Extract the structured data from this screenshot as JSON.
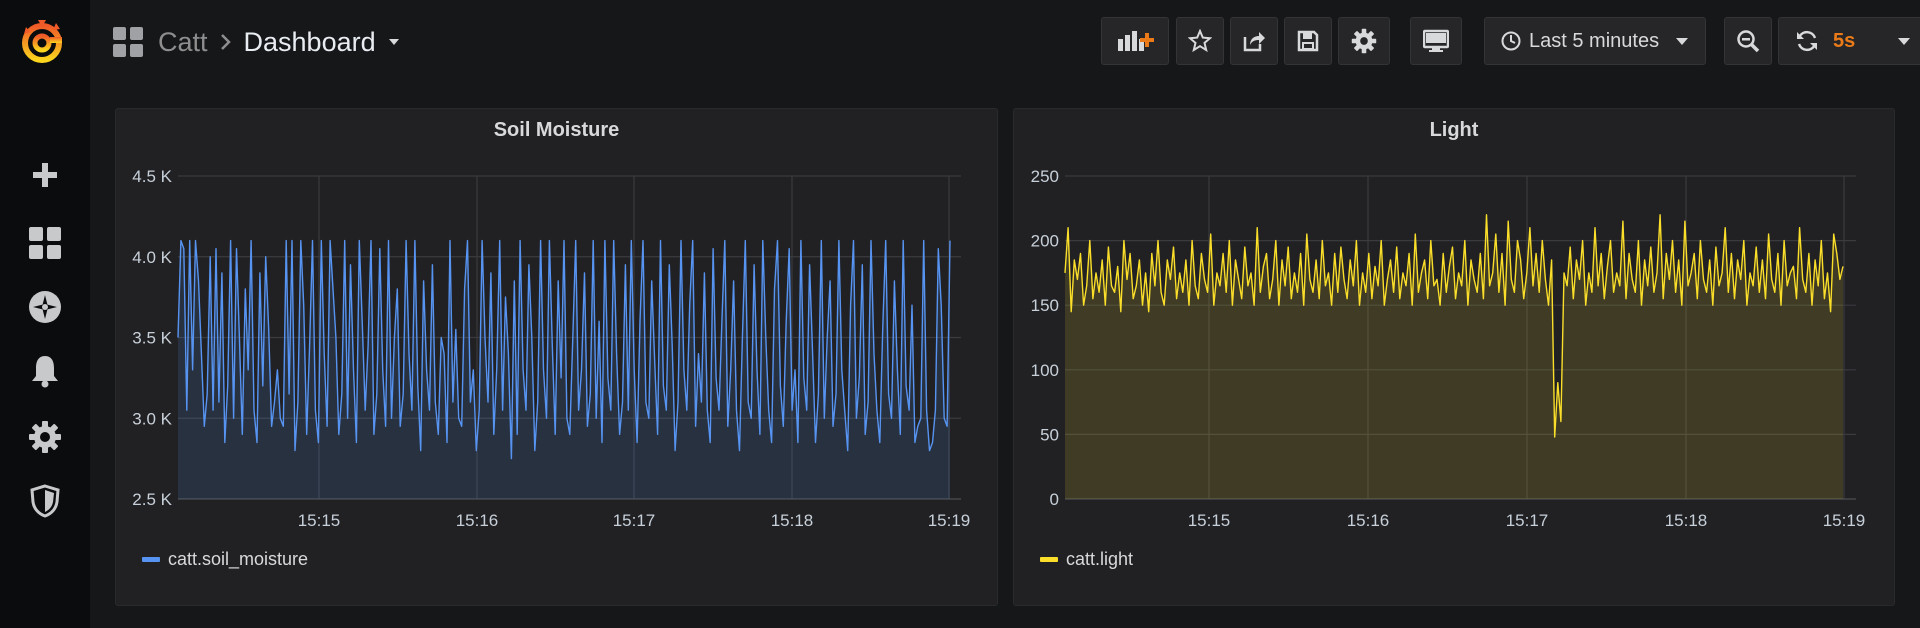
{
  "nav": {
    "folder": "Catt",
    "title": "Dashboard",
    "time_range": "Last 5 minutes",
    "refresh_interval": "5s"
  },
  "colors": {
    "accent": "#eb7b18",
    "soil": "#5794f2",
    "light": "#fade2a"
  },
  "icons": {
    "side": [
      "grafana-logo",
      "plus-icon",
      "dashboards-icon",
      "explore-icon",
      "bell-icon",
      "gear-icon",
      "shield-icon"
    ],
    "toolbar": [
      "add-panel-icon",
      "star-icon",
      "share-icon",
      "save-icon",
      "gear-icon",
      "monitor-icon",
      "clock-icon",
      "zoom-out-icon",
      "refresh-icon"
    ]
  },
  "chart_data": [
    {
      "type": "area",
      "title": "Soil Moisture",
      "x_ticks": [
        "15:15",
        "15:16",
        "15:17",
        "15:18",
        "15:19"
      ],
      "y_ticks": [
        "2.5 K",
        "3.0 K",
        "3.5 K",
        "4.0 K",
        "4.5 K"
      ],
      "ylim": [
        2500,
        4500
      ],
      "xlim_minutes": [
        "15:14:06",
        "15:19:06"
      ],
      "grid": true,
      "legend_position": "bottom-left",
      "series": [
        {
          "name": "catt.soil_moisture",
          "color": "#5794f2",
          "pattern": "rapid oscillation between ~2750 and ~4100",
          "values": [
            3500,
            4100,
            4050,
            3050,
            4100,
            3300,
            4100,
            3850,
            3400,
            2950,
            3150,
            4000,
            3050,
            4050,
            3100,
            3900,
            2850,
            3200,
            4100,
            3000,
            4050,
            3500,
            2900,
            3800,
            3300,
            4100,
            3050,
            2850,
            3900,
            3200,
            4000,
            3550,
            2950,
            3100,
            3300,
            3000,
            2950,
            4100,
            3150,
            4100,
            2800,
            3100,
            4100,
            3700,
            2900,
            3450,
            4100,
            3050,
            2850,
            4100,
            3400,
            2950,
            4100,
            3800,
            3500,
            2900,
            3150,
            4100,
            3000,
            3950,
            3300,
            2850,
            4100,
            3600,
            3050,
            3450,
            4100,
            2900,
            3150,
            4050,
            3300,
            2950,
            4100,
            3000,
            3500,
            3800,
            2950,
            3150,
            4100,
            3400,
            3050,
            4100,
            3200,
            2800,
            3850,
            3300,
            3050,
            3950,
            3100,
            2900,
            3500,
            3400,
            2850,
            4100,
            3100,
            3550,
            3000,
            2950,
            3800,
            4100,
            3100,
            3300,
            2800,
            3050,
            4100,
            3500,
            3100,
            3900,
            2900,
            3300,
            4100,
            3050,
            3750,
            3400,
            2750,
            3850,
            2900,
            4100,
            3300,
            3050,
            3950,
            3500,
            2800,
            3100,
            4100,
            3300,
            3000,
            4100,
            3450,
            2900,
            3850,
            3250,
            4100,
            3000,
            2900,
            3500,
            4100,
            3050,
            3300,
            3900,
            2950,
            3150,
            4100,
            3000,
            3600,
            2850,
            4100,
            3250,
            3050,
            4100,
            3400,
            2900,
            3100,
            3950,
            3050,
            4100,
            3300,
            2850,
            3600,
            4100,
            3100,
            3000,
            3850,
            3350,
            2900,
            4100,
            3200,
            3050,
            3950,
            3450,
            2800,
            3100,
            4100,
            3300,
            3050,
            3700,
            4100,
            2950,
            3400,
            3100,
            3900,
            3050,
            2850,
            4050,
            3250,
            3050,
            3600,
            4100,
            2950,
            3300,
            3850,
            3050,
            2800,
            3500,
            4100,
            3100,
            3000,
            3950,
            3300,
            2900,
            4100,
            3500,
            3050,
            2850,
            3800,
            4100,
            3200,
            2950,
            3600,
            4050,
            3050,
            3300,
            2850,
            4100,
            3250,
            3050,
            3950,
            3400,
            2850,
            3150,
            4100,
            3000,
            3500,
            3850,
            2950,
            3150,
            4100,
            3300,
            3050,
            2800,
            3700,
            4100,
            3000,
            3250,
            3950,
            2900,
            3100,
            4100,
            3400,
            3050,
            2850,
            3550,
            4100,
            3150,
            3000,
            3850,
            3300,
            2900,
            4100,
            3200,
            3050,
            3700,
            2850,
            2950,
            3000,
            4100,
            3050,
            2800,
            2850,
            3050,
            4050,
            3700,
            3000,
            2950,
            4100
          ]
        }
      ]
    },
    {
      "type": "area",
      "title": "Light",
      "x_ticks": [
        "15:15",
        "15:16",
        "15:17",
        "15:18",
        "15:19"
      ],
      "y_ticks": [
        "0",
        "50",
        "100",
        "150",
        "200",
        "250"
      ],
      "ylim": [
        0,
        250
      ],
      "xlim_minutes": [
        "15:14:06",
        "15:19:06"
      ],
      "grid": true,
      "legend_position": "bottom-left",
      "series": [
        {
          "name": "catt.light",
          "color": "#fade2a",
          "pattern": "noisy between ~145 and ~220 with dip to ~48 near 15:17:22",
          "values": [
            175,
            210,
            145,
            185,
            170,
            190,
            150,
            165,
            200,
            155,
            175,
            160,
            185,
            150,
            195,
            165,
            160,
            180,
            145,
            200,
            170,
            190,
            155,
            165,
            185,
            150,
            175,
            145,
            190,
            165,
            200,
            160,
            150,
            185,
            170,
            195,
            155,
            175,
            160,
            185,
            150,
            200,
            165,
            155,
            190,
            170,
            160,
            205,
            150,
            175,
            165,
            190,
            160,
            200,
            150,
            185,
            170,
            155,
            195,
            165,
            175,
            150,
            210,
            160,
            180,
            190,
            155,
            170,
            200,
            150,
            185,
            165,
            195,
            155,
            175,
            160,
            190,
            150,
            205,
            170,
            160,
            185,
            155,
            200,
            165,
            175,
            150,
            190,
            160,
            195,
            170,
            155,
            185,
            165,
            200,
            150,
            175,
            160,
            190,
            155,
            180,
            165,
            200,
            150,
            170,
            185,
            160,
            195,
            155,
            175,
            165,
            190,
            150,
            205,
            160,
            175,
            185,
            155,
            200,
            165,
            170,
            150,
            190,
            160,
            180,
            195,
            155,
            175,
            165,
            200,
            150,
            185,
            170,
            160,
            190,
            155,
            220,
            165,
            175,
            205,
            160,
            190,
            150,
            215,
            170,
            160,
            200,
            185,
            155,
            175,
            210,
            165,
            190,
            160,
            200,
            170,
            150,
            185,
            48,
            90,
            60,
            175,
            165,
            195,
            155,
            185,
            170,
            200,
            150,
            175,
            160,
            210,
            165,
            190,
            155,
            180,
            200,
            160,
            175,
            165,
            215,
            155,
            190,
            170,
            160,
            200,
            150,
            185,
            165,
            195,
            160,
            175,
            220,
            155,
            190,
            170,
            200,
            160,
            185,
            150,
            215,
            165,
            175,
            190,
            155,
            200,
            170,
            160,
            185,
            150,
            195,
            165,
            175,
            210,
            160,
            190,
            155,
            185,
            170,
            200,
            150,
            175,
            165,
            195,
            160,
            185,
            155,
            205,
            170,
            160,
            190,
            150,
            200,
            165,
            175,
            180,
            155,
            210,
            170,
            160,
            190,
            150,
            185,
            165,
            200,
            155,
            175,
            145,
            205,
            190,
            170,
            180
          ]
        }
      ]
    }
  ]
}
